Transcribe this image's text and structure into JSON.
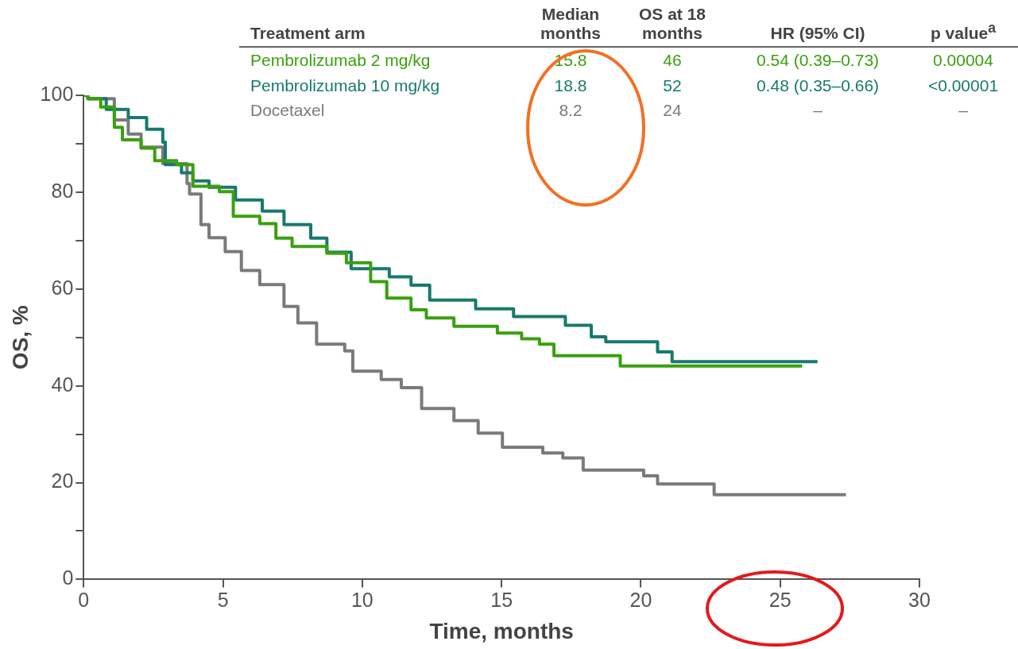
{
  "chart_data": {
    "type": "step",
    "xlabel": "Time, months",
    "ylabel": "OS, %",
    "xlim": [
      0,
      30
    ],
    "xticks": [
      0,
      5,
      10,
      15,
      20,
      25,
      30
    ],
    "ylim": [
      0,
      100
    ],
    "yticks": [
      0,
      {
        "value": 10,
        "label": null
      },
      20,
      {
        "value": 30,
        "label": null
      },
      40,
      {
        "value": 50,
        "label": null
      },
      60,
      {
        "value": 70,
        "label": null
      },
      80,
      {
        "value": 90,
        "label": null
      },
      100
    ],
    "grid": false,
    "legend": "top",
    "marker": "none",
    "line_style": "solid",
    "annotations": [
      "Treatment arm",
      "Median months",
      "OS at 18 months",
      "HR (95% CI)",
      "p value$^{a}$",
      "15.8",
      "46",
      "0.54 (0.39–0.73)",
      "0.00004",
      "18.8",
      "52",
      "0.48 (0.35–0.66)",
      "<0.00001",
      "8.2",
      "24",
      "–",
      "–"
    ],
    "series": [
      {
        "name": "Pembrolizumab 2 mg/kg",
        "color": "#3aa00f",
        "x": [
          0,
          0.15,
          0.61,
          1.1,
          1.39,
          2.06,
          2.55,
          3.34,
          3.92,
          4.87,
          5.37,
          6.32,
          6.9,
          7.48,
          8.73,
          9.43,
          10.3,
          10.88,
          11.75,
          12.3,
          13.29,
          14.85,
          15.72,
          16.36,
          16.88,
          19.26,
          25.79
        ],
        "values": [
          100,
          99.3,
          97.6,
          93.4,
          90.8,
          89.1,
          86.5,
          85.7,
          81.2,
          80.1,
          75,
          73.5,
          70.5,
          68.8,
          67.4,
          65.4,
          61.5,
          58.1,
          55.7,
          54,
          52.3,
          50.9,
          49.7,
          48.6,
          46.2,
          44.1,
          44.1
        ]
      },
      {
        "name": "Pembrolizumab 10 mg/kg",
        "color": "#177a6c",
        "x": [
          0,
          0.15,
          0.81,
          1.6,
          2.26,
          2.84,
          2.93,
          3.51,
          3.92,
          4.5,
          5.45,
          6.41,
          7.19,
          8.15,
          8.73,
          9.6,
          10.97,
          11.75,
          12.42,
          14.07,
          15.43,
          17.29,
          18.22,
          18.74,
          20.6,
          21.12,
          26.34
        ],
        "values": [
          100,
          99.3,
          97.1,
          95.4,
          93,
          90.3,
          85.7,
          84,
          82.3,
          81,
          78.4,
          76.1,
          73.3,
          70.5,
          67.6,
          64.2,
          62.5,
          60.8,
          57.7,
          55.9,
          54.3,
          52.5,
          50.1,
          49.1,
          47,
          45,
          45
        ]
      },
      {
        "name": "Docetaxel",
        "color": "#7a7a7a",
        "x": [
          0,
          0.15,
          1.1,
          1.6,
          2.06,
          2.84,
          3.71,
          3.8,
          4.21,
          4.5,
          5.08,
          5.66,
          6.32,
          7.19,
          7.69,
          8.36,
          9.37,
          9.66,
          10.68,
          11.4,
          12.13,
          13.29,
          14.16,
          15.03,
          16.48,
          17.2,
          17.93,
          20.1,
          20.6,
          22.63,
          27.36
        ],
        "values": [
          100,
          99.3,
          94.9,
          92,
          89.3,
          85.9,
          81.8,
          79.6,
          73.3,
          70.6,
          67.7,
          63.8,
          60.9,
          56.4,
          53,
          48.6,
          47.2,
          43,
          41.3,
          39.6,
          35.3,
          32.8,
          30.2,
          27.3,
          26.1,
          25.1,
          22.6,
          21.4,
          19.7,
          17.5,
          17.5
        ]
      }
    ]
  }
}
